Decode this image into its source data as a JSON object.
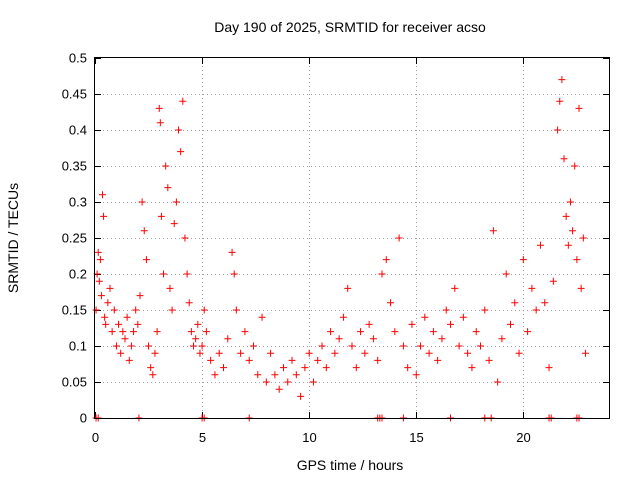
{
  "chart_data": {
    "type": "scatter",
    "title": "Day 190 of 2025, SRMTID for receiver acso",
    "xlabel": "GPS time / hours",
    "ylabel": "SRMTID / TECUs",
    "xlim": [
      0,
      24
    ],
    "ylim": [
      0,
      0.5
    ],
    "x_ticks": [
      0,
      5,
      10,
      15,
      20
    ],
    "x_tick_labels": [
      "0",
      "5",
      "10",
      "15",
      "20"
    ],
    "y_ticks": [
      0,
      0.05,
      0.1,
      0.15,
      0.2,
      0.25,
      0.3,
      0.35,
      0.4,
      0.45,
      0.5
    ],
    "y_tick_labels": [
      "0",
      "0.05",
      "0.1",
      "0.15",
      "0.2",
      "0.25",
      "0.3",
      "0.35",
      "0.4",
      "0.45",
      "0.5"
    ],
    "grid": true,
    "marker": "+",
    "color": "#ff0000",
    "series": [
      {
        "name": "SRMTID",
        "points": [
          [
            0.05,
            0.15
          ],
          [
            0.1,
            0.2
          ],
          [
            0.15,
            0.23
          ],
          [
            0.2,
            0.19
          ],
          [
            0.25,
            0.22
          ],
          [
            0.3,
            0.17
          ],
          [
            0.35,
            0.31
          ],
          [
            0.4,
            0.28
          ],
          [
            0.45,
            0.14
          ],
          [
            0.5,
            0.13
          ],
          [
            0.6,
            0.16
          ],
          [
            0.7,
            0.18
          ],
          [
            0.8,
            0.12
          ],
          [
            0.9,
            0.15
          ],
          [
            1.0,
            0.1
          ],
          [
            1.1,
            0.13
          ],
          [
            1.2,
            0.09
          ],
          [
            1.3,
            0.12
          ],
          [
            1.4,
            0.11
          ],
          [
            1.5,
            0.14
          ],
          [
            1.6,
            0.08
          ],
          [
            1.7,
            0.1
          ],
          [
            1.8,
            0.12
          ],
          [
            1.9,
            0.15
          ],
          [
            2.0,
            0.13
          ],
          [
            2.1,
            0.17
          ],
          [
            2.2,
            0.3
          ],
          [
            2.3,
            0.26
          ],
          [
            2.4,
            0.22
          ],
          [
            2.5,
            0.1
          ],
          [
            2.6,
            0.07
          ],
          [
            2.7,
            0.06
          ],
          [
            2.8,
            0.09
          ],
          [
            2.9,
            0.12
          ],
          [
            3.0,
            0.43
          ],
          [
            3.05,
            0.41
          ],
          [
            3.1,
            0.28
          ],
          [
            3.2,
            0.2
          ],
          [
            3.3,
            0.35
          ],
          [
            3.4,
            0.32
          ],
          [
            3.5,
            0.18
          ],
          [
            3.6,
            0.15
          ],
          [
            3.7,
            0.27
          ],
          [
            3.8,
            0.3
          ],
          [
            3.9,
            0.4
          ],
          [
            4.0,
            0.37
          ],
          [
            4.1,
            0.44
          ],
          [
            4.2,
            0.25
          ],
          [
            4.3,
            0.2
          ],
          [
            4.4,
            0.16
          ],
          [
            4.5,
            0.12
          ],
          [
            4.6,
            0.1
          ],
          [
            4.7,
            0.11
          ],
          [
            4.8,
            0.13
          ],
          [
            4.9,
            0.09
          ],
          [
            5.0,
            0.1
          ],
          [
            5.1,
            0.15
          ],
          [
            5.2,
            0.12
          ],
          [
            5.4,
            0.08
          ],
          [
            5.6,
            0.06
          ],
          [
            5.8,
            0.09
          ],
          [
            6.0,
            0.07
          ],
          [
            6.2,
            0.11
          ],
          [
            6.4,
            0.23
          ],
          [
            6.5,
            0.2
          ],
          [
            6.6,
            0.15
          ],
          [
            6.8,
            0.09
          ],
          [
            7.0,
            0.12
          ],
          [
            7.2,
            0.08
          ],
          [
            7.4,
            0.1
          ],
          [
            7.6,
            0.06
          ],
          [
            7.8,
            0.14
          ],
          [
            8.0,
            0.05
          ],
          [
            8.2,
            0.09
          ],
          [
            8.4,
            0.06
          ],
          [
            8.6,
            0.04
          ],
          [
            8.8,
            0.07
          ],
          [
            9.0,
            0.05
          ],
          [
            9.2,
            0.08
          ],
          [
            9.4,
            0.06
          ],
          [
            9.6,
            0.03
          ],
          [
            9.8,
            0.07
          ],
          [
            10.0,
            0.09
          ],
          [
            10.2,
            0.05
          ],
          [
            10.4,
            0.08
          ],
          [
            10.6,
            0.1
          ],
          [
            10.8,
            0.07
          ],
          [
            11.0,
            0.12
          ],
          [
            11.2,
            0.09
          ],
          [
            11.4,
            0.11
          ],
          [
            11.6,
            0.14
          ],
          [
            11.8,
            0.18
          ],
          [
            12.0,
            0.1
          ],
          [
            12.2,
            0.07
          ],
          [
            12.4,
            0.12
          ],
          [
            12.6,
            0.09
          ],
          [
            12.8,
            0.13
          ],
          [
            13.0,
            0.11
          ],
          [
            13.2,
            0.08
          ],
          [
            13.4,
            0.2
          ],
          [
            13.6,
            0.22
          ],
          [
            13.8,
            0.16
          ],
          [
            14.0,
            0.12
          ],
          [
            14.2,
            0.25
          ],
          [
            14.4,
            0.1
          ],
          [
            14.6,
            0.07
          ],
          [
            14.8,
            0.13
          ],
          [
            15.0,
            0.06
          ],
          [
            15.2,
            0.1
          ],
          [
            15.4,
            0.14
          ],
          [
            15.6,
            0.09
          ],
          [
            15.8,
            0.12
          ],
          [
            16.0,
            0.08
          ],
          [
            16.2,
            0.11
          ],
          [
            16.4,
            0.15
          ],
          [
            16.6,
            0.13
          ],
          [
            16.8,
            0.18
          ],
          [
            17.0,
            0.1
          ],
          [
            17.2,
            0.14
          ],
          [
            17.4,
            0.09
          ],
          [
            17.6,
            0.07
          ],
          [
            17.8,
            0.12
          ],
          [
            18.0,
            0.1
          ],
          [
            18.2,
            0.15
          ],
          [
            18.4,
            0.08
          ],
          [
            18.6,
            0.26
          ],
          [
            18.8,
            0.05
          ],
          [
            19.0,
            0.11
          ],
          [
            19.2,
            0.2
          ],
          [
            19.4,
            0.13
          ],
          [
            19.6,
            0.16
          ],
          [
            19.8,
            0.09
          ],
          [
            20.0,
            0.22
          ],
          [
            20.2,
            0.12
          ],
          [
            20.4,
            0.18
          ],
          [
            20.6,
            0.15
          ],
          [
            20.8,
            0.24
          ],
          [
            21.0,
            0.16
          ],
          [
            21.2,
            0.07
          ],
          [
            21.4,
            0.19
          ],
          [
            21.6,
            0.4
          ],
          [
            21.7,
            0.44
          ],
          [
            21.8,
            0.47
          ],
          [
            21.9,
            0.36
          ],
          [
            22.0,
            0.28
          ],
          [
            22.1,
            0.24
          ],
          [
            22.2,
            0.3
          ],
          [
            22.3,
            0.26
          ],
          [
            22.4,
            0.35
          ],
          [
            22.5,
            0.22
          ],
          [
            22.6,
            0.43
          ],
          [
            22.7,
            0.18
          ],
          [
            22.8,
            0.25
          ],
          [
            22.9,
            0.09
          ]
        ]
      }
    ],
    "zero_markers_x": [
      0.05,
      0.15,
      2.05,
      5.0,
      5.1,
      7.2,
      13.2,
      13.3,
      13.4,
      14.4,
      16.6,
      18.2,
      18.5,
      21.2,
      21.3,
      22.5,
      22.6
    ]
  }
}
